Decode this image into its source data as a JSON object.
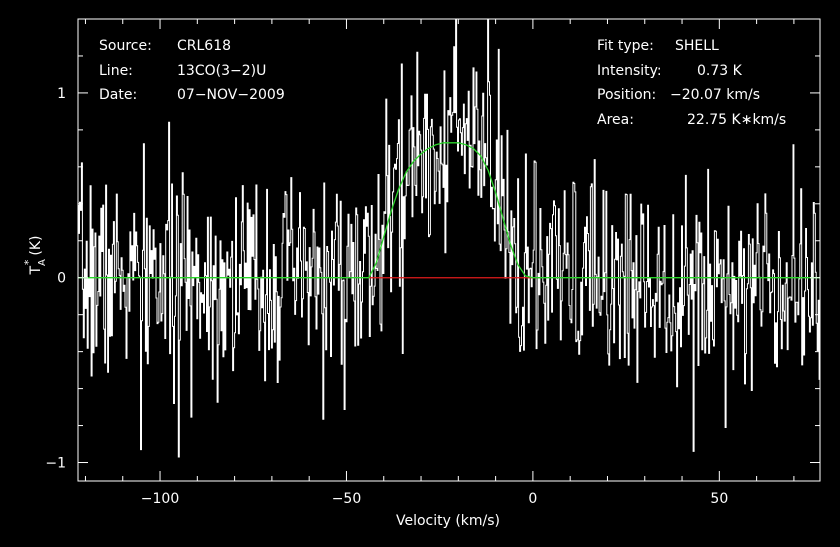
{
  "chart_data": {
    "type": "line",
    "xlabel": "Velocity (km/s)",
    "ylabel": "T",
    "ylabel_sub": "A",
    "ylabel_sup": "*",
    "ylabel_unit": "(K)",
    "xlim": [
      -122,
      77
    ],
    "ylim": [
      -1.1,
      1.4
    ],
    "xticks": [
      -100,
      -50,
      0,
      50
    ],
    "xtick_labels": [
      "−100",
      "−50",
      "0",
      "50"
    ],
    "yticks": [
      -1,
      0,
      1
    ],
    "ytick_labels": [
      "−1",
      "0",
      "1"
    ],
    "grid": false,
    "info_left": [
      {
        "key": "Source:",
        "value": "CRL618"
      },
      {
        "key": "Line:",
        "value": "13CO(3−2)U"
      },
      {
        "key": "Date:",
        "value": "07−NOV−2009"
      }
    ],
    "info_right": [
      {
        "key": "Fit type:",
        "value": "SHELL"
      },
      {
        "key": "Intensity:",
        "value": "0.73 K"
      },
      {
        "key": "Position:",
        "value": "−20.07 km/s"
      },
      {
        "key": "Area:",
        "value": "22.75 K∗km/s"
      }
    ],
    "fit": {
      "model": "SHELL",
      "intensity_K": 0.73,
      "position_kms": -20.07,
      "area_Kkms": 22.75,
      "x": [
        -122,
        -44,
        -42,
        -40,
        -38,
        -36,
        -34,
        -32,
        -30,
        -28,
        -26,
        -24,
        -22,
        -20,
        -18,
        -16,
        -14,
        -12,
        -10,
        -8,
        -6,
        -4,
        -2,
        0,
        77
      ],
      "y": [
        0,
        0,
        0.08,
        0.22,
        0.36,
        0.48,
        0.57,
        0.63,
        0.67,
        0.7,
        0.72,
        0.73,
        0.73,
        0.73,
        0.72,
        0.7,
        0.66,
        0.58,
        0.46,
        0.32,
        0.18,
        0.07,
        0.01,
        0,
        0
      ]
    },
    "fit_window": {
      "x": [
        -44,
        2
      ],
      "y": [
        0,
        0
      ]
    },
    "spectrum": {
      "x_start": -122,
      "x_step": 0.26,
      "n_points": 766,
      "noise_sigma_K": 0.27,
      "signal": "shell profile, peak 0.73 K at -20.07 km/s over approximately -44 to 2 km/s",
      "sample_points": [
        {
          "x": -105,
          "y": -0.93
        },
        {
          "x": -95,
          "y": -0.97
        },
        {
          "x": -31,
          "y": 1.22
        },
        {
          "x": -21,
          "y": 1.25
        },
        {
          "x": -12,
          "y": 1.42
        },
        {
          "x": -35,
          "y": -0.41
        },
        {
          "x": 43,
          "y": -0.94
        },
        {
          "x": 70,
          "y": 0.72
        }
      ]
    },
    "colors": {
      "background": "#000000",
      "axes": "#ffffff",
      "spectrum": "#ffffff",
      "fit": "#2bd62b",
      "fit_window": "#e01b1b"
    }
  }
}
